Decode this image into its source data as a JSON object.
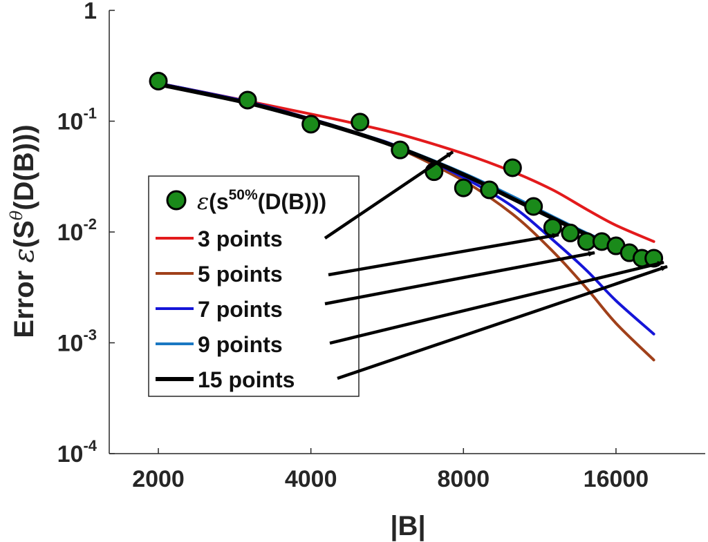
{
  "chart_data": {
    "type": "line",
    "x_scale": "log2",
    "y_scale": "log10",
    "xlim": [
      1600,
      24000
    ],
    "ylim": [
      0.0001,
      1
    ],
    "x_ticks": [
      2000,
      4000,
      8000,
      16000
    ],
    "x_tick_labels": [
      "2000",
      "4000",
      "8000",
      "16000"
    ],
    "y_ticks": [
      {
        "value": 1,
        "base": "1",
        "exp": ""
      },
      {
        "value": 0.1,
        "base": "10",
        "exp": "-1"
      },
      {
        "value": 0.01,
        "base": "10",
        "exp": "-2"
      },
      {
        "value": 0.001,
        "base": "10",
        "exp": "-3"
      },
      {
        "value": 0.0001,
        "base": "10",
        "exp": "-4"
      }
    ],
    "xlabel": "|B|",
    "ylabel": {
      "prefix": "Error ",
      "epsilon": "ε",
      "open": "(S",
      "sup": "θ",
      "close": "(D(B)))"
    },
    "scatter": {
      "legend": {
        "epsilon": "ε",
        "open": "(s",
        "sup": "50%",
        "close": "(D(B)))"
      },
      "color": "#1a8a1a",
      "x": [
        2000,
        3000,
        4000,
        5000,
        6000,
        7000,
        8000,
        9000,
        10000,
        11000,
        12000,
        13000,
        14000,
        15000,
        16000,
        17000,
        18000,
        19000
      ],
      "y": [
        0.23,
        0.155,
        0.094,
        0.098,
        0.055,
        0.035,
        0.025,
        0.024,
        0.038,
        0.017,
        0.011,
        0.0098,
        0.0082,
        0.0082,
        0.0075,
        0.0065,
        0.0058,
        0.0058
      ]
    },
    "series": [
      {
        "name": "3 points",
        "color": "#e31a1c",
        "width": 4,
        "x": [
          2000,
          3000,
          4000,
          5000,
          6000,
          8000,
          10000,
          12000,
          14000,
          16000,
          19000
        ],
        "y": [
          0.22,
          0.152,
          0.116,
          0.093,
          0.076,
          0.051,
          0.035,
          0.024,
          0.016,
          0.0115,
          0.0082
        ]
      },
      {
        "name": "5 points",
        "color": "#a0401a",
        "width": 4,
        "x": [
          2000,
          3000,
          4000,
          5000,
          6000,
          8000,
          10000,
          12000,
          14000,
          16000,
          19000
        ],
        "y": [
          0.22,
          0.15,
          0.105,
          0.076,
          0.056,
          0.029,
          0.0145,
          0.0067,
          0.0031,
          0.0015,
          0.0007
        ]
      },
      {
        "name": "7 points",
        "color": "#1515d8",
        "width": 4,
        "x": [
          2000,
          3000,
          4000,
          5000,
          6000,
          8000,
          10000,
          12000,
          14000,
          16000,
          19000
        ],
        "y": [
          0.22,
          0.15,
          0.105,
          0.077,
          0.058,
          0.031,
          0.017,
          0.0085,
          0.0045,
          0.0024,
          0.0012
        ]
      },
      {
        "name": "9 points",
        "color": "#1a78c2",
        "width": 4,
        "x": [
          2000,
          3000,
          4000,
          5000,
          6000,
          8000,
          10000,
          12000,
          14000,
          16000,
          19000
        ],
        "y": [
          0.215,
          0.148,
          0.104,
          0.077,
          0.058,
          0.034,
          0.021,
          0.0138,
          0.0098,
          0.0076,
          0.0057
        ]
      },
      {
        "name": "15 points",
        "color": "#000000",
        "width": 6,
        "x": [
          2000,
          3000,
          4000,
          5000,
          6000,
          8000,
          10000,
          12000,
          14000,
          16000,
          19000
        ],
        "y": [
          0.215,
          0.146,
          0.103,
          0.076,
          0.057,
          0.033,
          0.02,
          0.0133,
          0.0095,
          0.0074,
          0.0053
        ]
      }
    ],
    "legend": {
      "placement": "center-left"
    },
    "grid": false
  }
}
